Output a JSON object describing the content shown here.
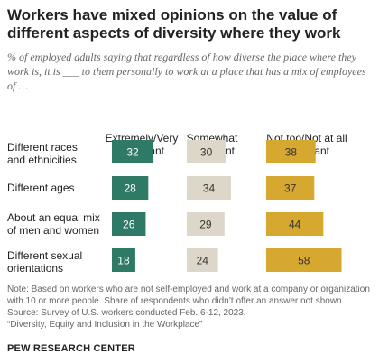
{
  "title": "Workers have mixed opinions on the value of different aspects of diversity where they work",
  "subtitle": "% of employed adults saying that regardless of how diverse the place where they work is, it is ___ to them personally to work at a place that has a mix of employees of …",
  "chart_data": {
    "type": "bar",
    "categories": [
      "Different races and ethnicities",
      "Different ages",
      "About an equal mix of men and women",
      "Different sexual orientations"
    ],
    "series": [
      {
        "name": "Extremely/Very important",
        "values": [
          32,
          28,
          26,
          18
        ],
        "color": "#2e7a66",
        "label_color": "#ffffff"
      },
      {
        "name": "Somewhat important",
        "values": [
          30,
          34,
          29,
          24
        ],
        "color": "#dcd7c9",
        "label_color": "#333333"
      },
      {
        "name": "Not too/Not at all important",
        "values": [
          38,
          37,
          44,
          58
        ],
        "color": "#d7a82f",
        "label_color": "#333333"
      }
    ]
  },
  "column_headers": [
    "Extremely/Very important",
    "Somewhat important",
    "Not too/Not at all important"
  ],
  "row_labels": [
    "Different races and ethnicities",
    "Different ages",
    "About an equal mix of men and women",
    "Different sexual orientations"
  ],
  "notes": {
    "note": "Note: Based on workers who are not self-employed and work at a company or organization with 10 or more people. Share of respondents who didn’t offer an answer not shown.",
    "source": "Source: Survey of U.S. workers conducted Feb. 6-12, 2023.",
    "report": "“Diversity, Equity and Inclusion in the Workplace”"
  },
  "brand": "PEW RESEARCH CENTER"
}
